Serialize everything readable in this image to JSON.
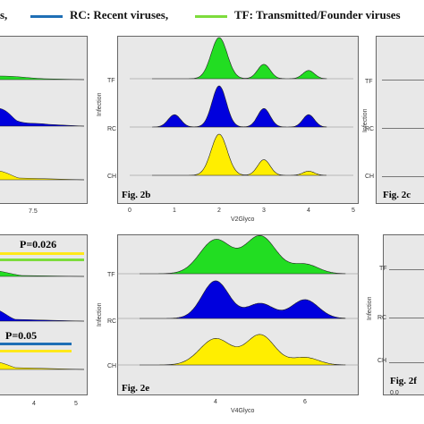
{
  "legend": {
    "frag_left": "s,",
    "rc_text": "RC:  Recent viruses,",
    "tf_text": "TF:  Transmitted/Founder viruses",
    "rc_color": "#1f6fb5",
    "tf_color": "#7ddc3c"
  },
  "colors": {
    "TF": "#22dd22",
    "RC": "#0000dd",
    "CH": "#ffee00"
  },
  "panels": {
    "left_top": {
      "tick": "7.5"
    },
    "left_bottom": {
      "p1": "P=0.026",
      "p2": "P=0.05",
      "ticks": [
        "4",
        "5"
      ]
    },
    "fig2c": {
      "label": "Fig. 2c",
      "ylabel": "Infection",
      "groups": [
        "TF",
        "RC",
        "CH"
      ]
    },
    "fig2f": {
      "label": "Fig. 2f",
      "ylabel": "Infection",
      "groups": [
        "TF",
        "RC",
        "CH"
      ],
      "tick": "0.0"
    }
  },
  "chart_data": [
    {
      "type": "area",
      "title": "Fig. 2b",
      "xlabel": "V2Glyco",
      "ylabel": "Infection",
      "xlim": [
        0,
        5
      ],
      "x_ticks": [
        "0",
        "1",
        "2",
        "3",
        "4",
        "5"
      ],
      "groups": [
        "TF",
        "RC",
        "CH"
      ],
      "peaks": {
        "TF": [
          {
            "x": 2,
            "h": 1.0,
            "w": 0.18
          },
          {
            "x": 3,
            "h": 0.35,
            "w": 0.14
          },
          {
            "x": 4,
            "h": 0.2,
            "w": 0.13
          }
        ],
        "RC": [
          {
            "x": 1,
            "h": 0.3,
            "w": 0.14
          },
          {
            "x": 2,
            "h": 1.0,
            "w": 0.16
          },
          {
            "x": 3,
            "h": 0.45,
            "w": 0.14
          },
          {
            "x": 4,
            "h": 0.3,
            "w": 0.13
          }
        ],
        "CH": [
          {
            "x": 2,
            "h": 1.0,
            "w": 0.18
          },
          {
            "x": 3,
            "h": 0.38,
            "w": 0.14
          },
          {
            "x": 4,
            "h": 0.1,
            "w": 0.13
          }
        ]
      },
      "xrange": [
        0.5,
        4.4
      ]
    },
    {
      "type": "area",
      "title": "Fig. 2e",
      "xlabel": "V4Glyco",
      "ylabel": "Infection",
      "xlim": [
        1.8,
        7.2
      ],
      "x_ticks": [
        "4",
        "6"
      ],
      "tick_values": [
        4,
        6
      ],
      "groups": [
        "TF",
        "RC",
        "CH"
      ],
      "peaks": {
        "TF": [
          {
            "x": 4,
            "h": 0.9,
            "w": 0.35
          },
          {
            "x": 5,
            "h": 1.0,
            "w": 0.35
          },
          {
            "x": 6,
            "h": 0.25,
            "w": 0.3
          }
        ],
        "RC": [
          {
            "x": 4,
            "h": 1.0,
            "w": 0.3
          },
          {
            "x": 5,
            "h": 0.4,
            "w": 0.3
          },
          {
            "x": 6,
            "h": 0.5,
            "w": 0.3
          }
        ],
        "CH": [
          {
            "x": 4,
            "h": 0.7,
            "w": 0.35
          },
          {
            "x": 5,
            "h": 0.8,
            "w": 0.32
          },
          {
            "x": 6,
            "h": 0.2,
            "w": 0.3
          }
        ]
      },
      "xrange": [
        2.3,
        6.9
      ]
    }
  ]
}
